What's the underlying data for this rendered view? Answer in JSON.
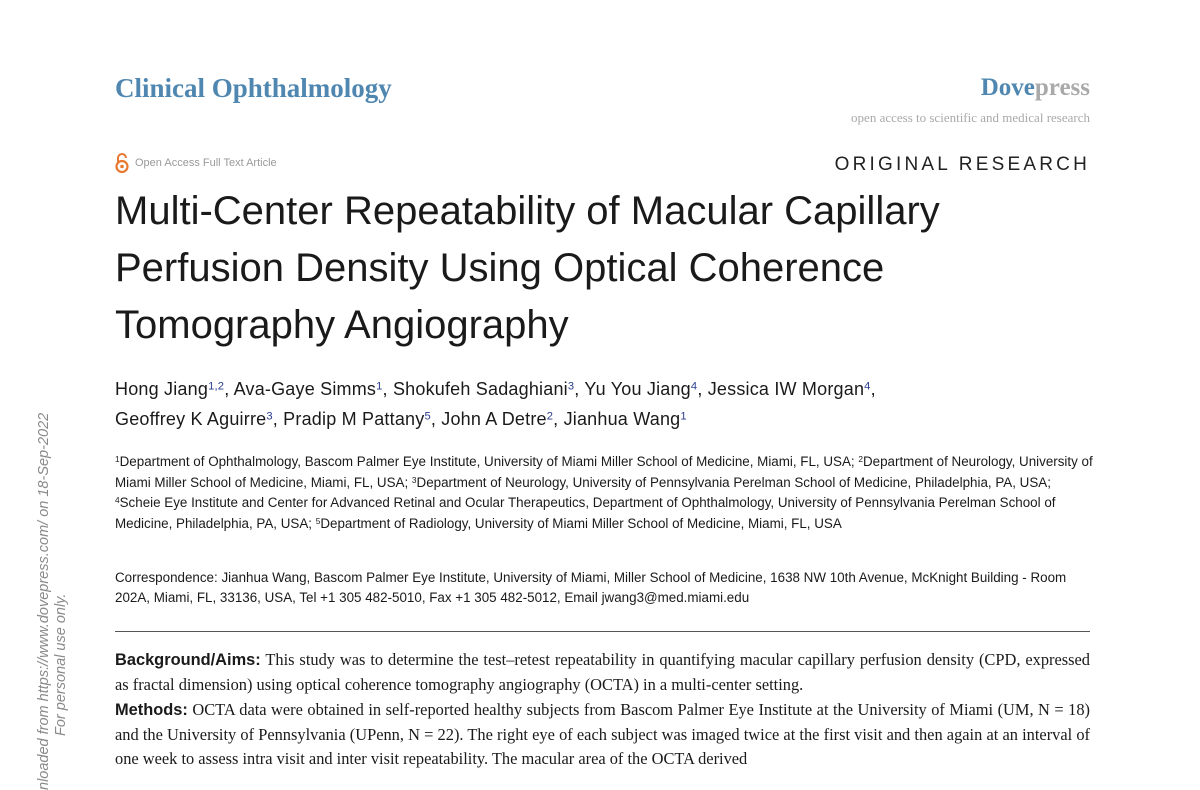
{
  "header": {
    "journal": "Clinical Ophthalmology",
    "publisher": {
      "part1": "Dove",
      "part2": "press"
    },
    "tagline": "open access to scientific and medical research",
    "access": "Open Access Full Text Article",
    "article_type": "ORIGINAL RESEARCH"
  },
  "title": {
    "lines": [
      "Multi-Center Repeatability of Macular Capillary",
      "Perfusion Density Using Optical Coherence",
      "Tomography Angiography"
    ]
  },
  "authors": {
    "lines": [
      [
        {
          "name": "Hong Jiang",
          "sup": "1,2",
          "after": ","
        },
        {
          "name": "Ava-Gaye Simms",
          "sup": "1",
          "after": ","
        },
        {
          "name": "Shokufeh Sadaghiani",
          "sup": "3",
          "after": ","
        },
        {
          "name": "Yu You Jiang",
          "sup": "4",
          "after": ","
        },
        {
          "name": "Jessica IW Morgan",
          "sup": "4",
          "after": ","
        }
      ],
      [
        {
          "name": "Geoffrey K Aguirre",
          "sup": "3",
          "after": ","
        },
        {
          "name": "Pradip M Pattany",
          "sup": "5",
          "after": ","
        },
        {
          "name": "John A Detre",
          "sup": "2",
          "after": ","
        },
        {
          "name": "Jianhua Wang",
          "sup": "1",
          "after": ""
        }
      ]
    ]
  },
  "affiliations": [
    {
      "sup": "1",
      "text": "Department of Ophthalmology, Bascom Palmer Eye Institute, University of Miami Miller School of Medicine, Miami, FL, USA; "
    },
    {
      "sup": "2",
      "text": "Department of Neurology, University of Miami Miller School of Medicine, Miami, FL, USA; "
    },
    {
      "sup": "3",
      "text": "Department of Neurology, University of Pennsylvania Perelman School of Medicine, Philadelphia, PA, USA; "
    },
    {
      "sup": "4",
      "text": "Scheie Eye Institute and Center for Advanced Retinal and Ocular Therapeutics, Department of Ophthalmology, University of Pennsylvania Perelman School of Medicine, Philadelphia, PA, USA; "
    },
    {
      "sup": "5",
      "text": "Department of Radiology, University of Miami Miller School of Medicine, Miami, FL, USA"
    }
  ],
  "correspondence": "Correspondence: Jianhua Wang, Bascom Palmer Eye Institute, University of Miami, Miller School of Medicine, 1638 NW 10th Avenue, McKnight Building - Room 202A, Miami, FL, 33136, USA, Tel +1 305 482-5010, Fax +1 305 482-5012, Email jwang3@med.miami.edu",
  "abstract": [
    {
      "label": "Background/Aims:",
      "text": "This study was to determine the test–retest repeatability in quantifying macular capillary perfusion density (CPD, expressed as fractal dimension) using optical coherence tomography angiography (OCTA) in a multi-center setting."
    },
    {
      "label": "Methods:",
      "text": "OCTA data were obtained in self-reported healthy subjects from Bascom Palmer Eye Institute at the University of Miami (UM, N = 18) and the University of Pennsylvania (UPenn, N = 22). The right eye of each subject was imaged twice at the first visit and then again at an interval of one week to assess intra visit and inter visit repeatability. The macular area of the OCTA derived"
    }
  ],
  "watermark": [
    "nloaded from https://www.dovepress.com/ on 18-Sep-2022",
    "For personal use only."
  ]
}
